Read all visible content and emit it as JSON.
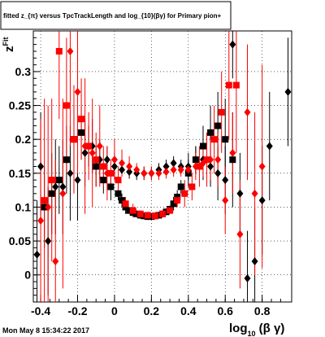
{
  "title": "fitted z_{π} versus TpcTrackLength and log_{10}(βγ) for Primary pion+",
  "footer_timestamp": "Mon May  8 15:34:22 2017",
  "chart_data": {
    "type": "scatter",
    "title": "fitted z_{π} versus TpcTrackLength and log_{10}(βγ) for Primary pion+",
    "xlabel_main": "log",
    "xlabel_sub": "10",
    "xlabel_rest": " (β γ)",
    "ylabel_main": "z",
    "ylabel_sub": "Fit",
    "xlim": [
      -0.44,
      0.96
    ],
    "ylim": [
      -0.04,
      0.36
    ],
    "x_ticks": [
      -0.4,
      -0.2,
      0,
      0.2,
      0.4,
      0.6,
      0.8
    ],
    "x_tick_labels": [
      "-0.4",
      "-0.2",
      "0",
      "0.2",
      "0.4",
      "0.6",
      "0.8"
    ],
    "y_ticks": [
      0,
      0.05,
      0.1,
      0.15,
      0.2,
      0.25,
      0.3
    ],
    "y_tick_labels": [
      "0",
      "0.05",
      "0.1",
      "0.15",
      "0.2",
      "0.25",
      "0.3"
    ],
    "grid": true,
    "colors": {
      "black_series": "#000000",
      "red_series": "#ff0000"
    },
    "series": [
      {
        "marker": "square",
        "color": "#000000",
        "points": [
          [
            -0.38,
            0.1,
            0.06
          ],
          [
            -0.34,
            0.12,
            0.06
          ],
          [
            -0.3,
            0.14,
            0.05
          ],
          [
            -0.26,
            0.17,
            0.05
          ],
          [
            -0.22,
            0.2,
            0.05
          ],
          [
            -0.18,
            0.21,
            0.04
          ],
          [
            -0.14,
            0.19,
            0.03
          ],
          [
            -0.1,
            0.16,
            0.03
          ],
          [
            -0.06,
            0.14,
            0.02
          ],
          [
            -0.02,
            0.13,
            0.02
          ],
          [
            0.02,
            0.12,
            0.01
          ],
          [
            0.04,
            0.11,
            0.01
          ],
          [
            0.06,
            0.1,
            0.01
          ],
          [
            0.08,
            0.095,
            0.005
          ],
          [
            0.1,
            0.092,
            0.005
          ],
          [
            0.12,
            0.09,
            0.005
          ],
          [
            0.14,
            0.088,
            0.005
          ],
          [
            0.16,
            0.087,
            0.005
          ],
          [
            0.18,
            0.086,
            0.005
          ],
          [
            0.2,
            0.086,
            0.005
          ],
          [
            0.22,
            0.087,
            0.005
          ],
          [
            0.24,
            0.088,
            0.005
          ],
          [
            0.26,
            0.09,
            0.005
          ],
          [
            0.28,
            0.093,
            0.005
          ],
          [
            0.3,
            0.097,
            0.005
          ],
          [
            0.32,
            0.105,
            0.01
          ],
          [
            0.34,
            0.115,
            0.01
          ],
          [
            0.36,
            0.13,
            0.01
          ],
          [
            0.4,
            0.15,
            0.02
          ],
          [
            0.44,
            0.17,
            0.02
          ],
          [
            0.48,
            0.19,
            0.03
          ],
          [
            0.52,
            0.21,
            0.04
          ],
          [
            0.56,
            0.22,
            0.05
          ],
          [
            0.6,
            0.2,
            0.06
          ],
          [
            0.64,
            0.17,
            0.07
          ]
        ]
      },
      {
        "marker": "diamond",
        "color": "#000000",
        "points": [
          [
            -0.42,
            0.03,
            0.08
          ],
          [
            -0.4,
            0.16,
            0.08
          ],
          [
            -0.36,
            0.05,
            0.08
          ],
          [
            -0.32,
            0.13,
            0.07
          ],
          [
            -0.28,
            0.13,
            0.07
          ],
          [
            -0.24,
            0.15,
            0.07
          ],
          [
            -0.2,
            0.14,
            0.06
          ],
          [
            -0.16,
            0.18,
            0.05
          ],
          [
            -0.12,
            0.19,
            0.04
          ],
          [
            -0.08,
            0.17,
            0.03
          ],
          [
            -0.04,
            0.17,
            0.02
          ],
          [
            0.0,
            0.16,
            0.02
          ],
          [
            0.04,
            0.155,
            0.01
          ],
          [
            0.08,
            0.152,
            0.01
          ],
          [
            0.12,
            0.15,
            0.01
          ],
          [
            0.16,
            0.15,
            0.01
          ],
          [
            0.2,
            0.15,
            0.01
          ],
          [
            0.24,
            0.155,
            0.01
          ],
          [
            0.28,
            0.16,
            0.01
          ],
          [
            0.32,
            0.165,
            0.01
          ],
          [
            0.36,
            0.16,
            0.01
          ],
          [
            0.4,
            0.16,
            0.02
          ],
          [
            0.44,
            0.17,
            0.02
          ],
          [
            0.48,
            0.17,
            0.03
          ],
          [
            0.52,
            0.16,
            0.03
          ],
          [
            0.56,
            0.15,
            0.04
          ],
          [
            0.6,
            0.14,
            0.05
          ],
          [
            0.64,
            0.34,
            0.05
          ],
          [
            0.68,
            0.12,
            0.06
          ],
          [
            0.72,
            -0.005,
            0.07
          ],
          [
            0.76,
            0.02,
            0.08
          ],
          [
            0.8,
            0.11,
            0.08
          ],
          [
            0.84,
            0.19,
            0.08
          ],
          [
            0.94,
            0.27,
            0.08
          ]
        ]
      },
      {
        "marker": "square",
        "color": "#ff0000",
        "points": [
          [
            -0.38,
            0.11,
            0.15
          ],
          [
            -0.34,
            0.14,
            0.12
          ],
          [
            -0.3,
            0.33,
            0.1
          ],
          [
            -0.26,
            0.25,
            0.1
          ],
          [
            -0.22,
            0.2,
            0.08
          ],
          [
            -0.18,
            0.23,
            0.06
          ],
          [
            -0.14,
            0.19,
            0.05
          ],
          [
            -0.1,
            0.17,
            0.04
          ],
          [
            -0.06,
            0.16,
            0.03
          ],
          [
            -0.02,
            0.15,
            0.02
          ],
          [
            0.02,
            0.14,
            0.02
          ],
          [
            0.06,
            0.105,
            0.01
          ],
          [
            0.1,
            0.095,
            0.01
          ],
          [
            0.14,
            0.09,
            0.005
          ],
          [
            0.18,
            0.088,
            0.005
          ],
          [
            0.22,
            0.087,
            0.005
          ],
          [
            0.26,
            0.09,
            0.005
          ],
          [
            0.3,
            0.095,
            0.005
          ],
          [
            0.34,
            0.11,
            0.01
          ],
          [
            0.38,
            0.12,
            0.02
          ],
          [
            0.42,
            0.13,
            0.02
          ],
          [
            0.46,
            0.16,
            0.03
          ],
          [
            0.5,
            0.17,
            0.04
          ],
          [
            0.54,
            0.2,
            0.05
          ],
          [
            0.58,
            0.24,
            0.06
          ],
          [
            0.62,
            0.28,
            0.08
          ],
          [
            0.66,
            0.28,
            0.1
          ]
        ]
      },
      {
        "marker": "diamond",
        "color": "#ff0000",
        "points": [
          [
            -0.4,
            0.08,
            0.15
          ],
          [
            -0.36,
            0.1,
            0.15
          ],
          [
            -0.32,
            0.02,
            0.15
          ],
          [
            -0.28,
            0.12,
            0.14
          ],
          [
            -0.24,
            0.33,
            0.14
          ],
          [
            -0.2,
            0.27,
            0.12
          ],
          [
            -0.16,
            0.19,
            0.1
          ],
          [
            -0.12,
            0.18,
            0.08
          ],
          [
            -0.08,
            0.19,
            0.06
          ],
          [
            -0.04,
            0.15,
            0.04
          ],
          [
            0.0,
            0.17,
            0.03
          ],
          [
            0.04,
            0.165,
            0.02
          ],
          [
            0.08,
            0.16,
            0.015
          ],
          [
            0.12,
            0.155,
            0.01
          ],
          [
            0.16,
            0.15,
            0.01
          ],
          [
            0.2,
            0.15,
            0.01
          ],
          [
            0.24,
            0.15,
            0.01
          ],
          [
            0.28,
            0.152,
            0.01
          ],
          [
            0.32,
            0.155,
            0.01
          ],
          [
            0.36,
            0.155,
            0.01
          ],
          [
            0.4,
            0.155,
            0.01
          ],
          [
            0.44,
            0.16,
            0.02
          ],
          [
            0.48,
            0.165,
            0.02
          ],
          [
            0.52,
            0.17,
            0.03
          ],
          [
            0.56,
            0.17,
            0.04
          ],
          [
            0.6,
            0.11,
            0.05
          ],
          [
            0.64,
            0.18,
            0.06
          ],
          [
            0.68,
            0.06,
            0.08
          ],
          [
            0.72,
            0.24,
            0.1
          ],
          [
            0.76,
            0.12,
            0.12
          ],
          [
            0.8,
            0.16,
            0.15
          ]
        ]
      }
    ]
  }
}
